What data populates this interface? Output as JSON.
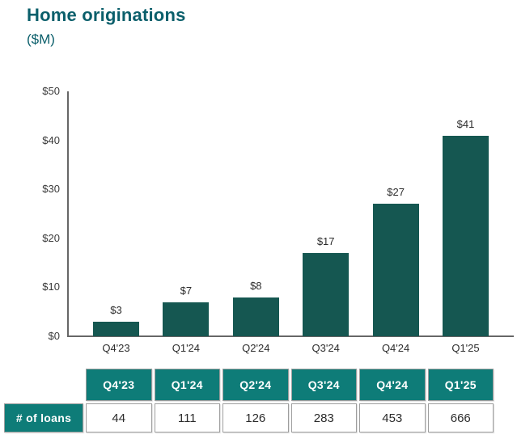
{
  "header": {
    "title": "Home originations",
    "subtitle": "($M)"
  },
  "chart_data": {
    "type": "bar",
    "title": "Home originations",
    "subtitle": "($M)",
    "categories": [
      "Q4'23",
      "Q1'24",
      "Q2'24",
      "Q3'24",
      "Q4'24",
      "Q1'25"
    ],
    "values": [
      3,
      7,
      8,
      17,
      27,
      41
    ],
    "bar_labels": [
      "$3",
      "$7",
      "$8",
      "$17",
      "$27",
      "$41"
    ],
    "xlabel": "",
    "ylabel": "",
    "ylim": [
      0,
      50
    ],
    "ytick_step": 10,
    "ytick_labels": [
      "$0",
      "$10",
      "$20",
      "$30",
      "$40",
      "$50"
    ],
    "grid": false,
    "legend_position": "none"
  },
  "table": {
    "corner_label": "",
    "columns": [
      "Q4'23",
      "Q1'24",
      "Q2'24",
      "Q3'24",
      "Q4'24",
      "Q1'25"
    ],
    "rows": [
      {
        "label": "# of loans",
        "values": [
          "44",
          "111",
          "126",
          "283",
          "453",
          "666"
        ]
      }
    ]
  },
  "colors": {
    "accent_teal": "#0b5f6b",
    "bar_teal": "#155751",
    "table_header_teal": "#0e7c78",
    "axis_gray": "#666666",
    "border_gray": "#9e9e9e",
    "text_dark": "#2b2b2b"
  }
}
